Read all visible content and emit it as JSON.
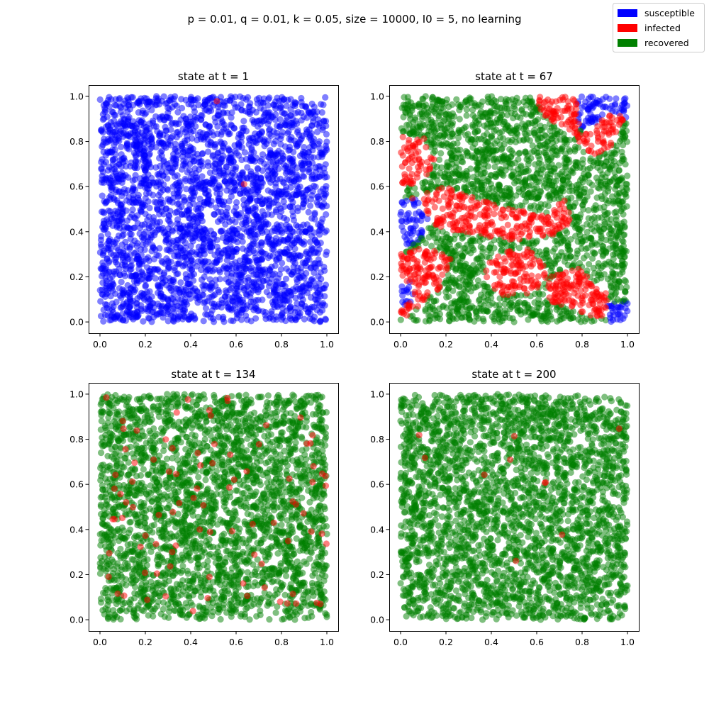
{
  "suptitle": "p = 0.01, q = 0.01, k = 0.05, size = 10000, I0 = 5, no learning",
  "legend": {
    "placement": "top-right",
    "entries": [
      {
        "label": "susceptible",
        "color": "#0000ff"
      },
      {
        "label": "infected",
        "color": "#ff0000"
      },
      {
        "label": "recovered",
        "color": "#008000"
      }
    ]
  },
  "chart_data": [
    {
      "type": "scatter",
      "title": "state at t = 1",
      "xlim": [
        -0.05,
        1.05
      ],
      "ylim": [
        -0.05,
        1.05
      ],
      "xticks": [
        "0.0",
        "0.2",
        "0.4",
        "0.6",
        "0.8",
        "1.0"
      ],
      "yticks": [
        "0.0",
        "0.2",
        "0.4",
        "0.6",
        "0.8",
        "1.0"
      ],
      "grid": false,
      "population": 10000,
      "composition": {
        "susceptible": 0.999,
        "infected": 0.001,
        "recovered": 0.0
      },
      "regions": [],
      "point_alpha": 0.5
    },
    {
      "type": "scatter",
      "title": "state at t = 67",
      "xlim": [
        -0.05,
        1.05
      ],
      "ylim": [
        -0.05,
        1.05
      ],
      "xticks": [
        "0.0",
        "0.2",
        "0.4",
        "0.6",
        "0.8",
        "1.0"
      ],
      "yticks": [
        "0.0",
        "0.2",
        "0.4",
        "0.6",
        "0.8",
        "1.0"
      ],
      "grid": false,
      "population": 10000,
      "composition": {
        "susceptible": 0.05,
        "infected": 0.33,
        "recovered": 0.62
      },
      "regions": [
        {
          "state": "susceptible",
          "polygon": [
            [
              0.78,
              1.0
            ],
            [
              1.0,
              1.0
            ],
            [
              1.0,
              0.9
            ],
            [
              0.92,
              0.93
            ],
            [
              0.86,
              0.88
            ],
            [
              0.8,
              0.83
            ],
            [
              0.78,
              0.9
            ]
          ]
        },
        {
          "state": "susceptible",
          "polygon": [
            [
              0.0,
              0.53
            ],
            [
              0.06,
              0.55
            ],
            [
              0.11,
              0.5
            ],
            [
              0.14,
              0.44
            ],
            [
              0.1,
              0.38
            ],
            [
              0.03,
              0.33
            ],
            [
              0.0,
              0.34
            ]
          ]
        },
        {
          "state": "susceptible",
          "polygon": [
            [
              0.0,
              0.18
            ],
            [
              0.05,
              0.18
            ],
            [
              0.06,
              0.09
            ],
            [
              0.0,
              0.07
            ]
          ]
        },
        {
          "state": "susceptible",
          "polygon": [
            [
              0.91,
              0.09
            ],
            [
              1.0,
              0.09
            ],
            [
              1.0,
              0.0
            ],
            [
              0.91,
              0.0
            ]
          ]
        },
        {
          "state": "infected",
          "polygon": [
            [
              0.6,
              1.0
            ],
            [
              0.8,
              1.0
            ],
            [
              0.78,
              0.82
            ],
            [
              0.7,
              0.86
            ],
            [
              0.62,
              0.93
            ]
          ]
        },
        {
          "state": "infected",
          "polygon": [
            [
              0.78,
              0.82
            ],
            [
              0.86,
              0.88
            ],
            [
              0.93,
              0.94
            ],
            [
              0.99,
              0.9
            ],
            [
              0.96,
              0.8
            ],
            [
              0.86,
              0.74
            ],
            [
              0.8,
              0.76
            ]
          ]
        },
        {
          "state": "infected",
          "polygon": [
            [
              0.0,
              0.83
            ],
            [
              0.1,
              0.82
            ],
            [
              0.16,
              0.72
            ],
            [
              0.1,
              0.62
            ],
            [
              0.03,
              0.6
            ],
            [
              0.0,
              0.62
            ]
          ]
        },
        {
          "state": "infected",
          "polygon": [
            [
              0.05,
              0.55
            ],
            [
              0.2,
              0.6
            ],
            [
              0.35,
              0.54
            ],
            [
              0.5,
              0.5
            ],
            [
              0.64,
              0.48
            ],
            [
              0.72,
              0.56
            ],
            [
              0.76,
              0.45
            ],
            [
              0.66,
              0.38
            ],
            [
              0.52,
              0.36
            ],
            [
              0.38,
              0.38
            ],
            [
              0.24,
              0.4
            ],
            [
              0.12,
              0.44
            ]
          ]
        },
        {
          "state": "infected",
          "polygon": [
            [
              0.0,
              0.3
            ],
            [
              0.12,
              0.34
            ],
            [
              0.22,
              0.28
            ],
            [
              0.18,
              0.16
            ],
            [
              0.1,
              0.08
            ],
            [
              0.02,
              0.02
            ],
            [
              0.0,
              0.04
            ]
          ]
        },
        {
          "state": "infected",
          "polygon": [
            [
              0.66,
              0.2
            ],
            [
              0.78,
              0.24
            ],
            [
              0.9,
              0.14
            ],
            [
              0.94,
              0.04
            ],
            [
              0.86,
              0.02
            ],
            [
              0.74,
              0.06
            ],
            [
              0.64,
              0.1
            ]
          ]
        },
        {
          "state": "infected",
          "polygon": [
            [
              0.4,
              0.3
            ],
            [
              0.56,
              0.33
            ],
            [
              0.66,
              0.22
            ],
            [
              0.58,
              0.12
            ],
            [
              0.44,
              0.12
            ],
            [
              0.36,
              0.2
            ]
          ]
        }
      ],
      "point_alpha": 0.5
    },
    {
      "type": "scatter",
      "title": "state at t = 134",
      "xlim": [
        -0.05,
        1.05
      ],
      "ylim": [
        -0.05,
        1.05
      ],
      "xticks": [
        "0.0",
        "0.2",
        "0.4",
        "0.6",
        "0.8",
        "1.0"
      ],
      "yticks": [
        "0.0",
        "0.2",
        "0.4",
        "0.6",
        "0.8",
        "1.0"
      ],
      "grid": false,
      "population": 10000,
      "composition": {
        "susceptible": 0.0,
        "infected": 0.03,
        "recovered": 0.97
      },
      "regions": [],
      "point_alpha": 0.5
    },
    {
      "type": "scatter",
      "title": "state at t = 200",
      "xlim": [
        -0.05,
        1.05
      ],
      "ylim": [
        -0.05,
        1.05
      ],
      "xticks": [
        "0.0",
        "0.2",
        "0.4",
        "0.6",
        "0.8",
        "1.0"
      ],
      "yticks": [
        "0.0",
        "0.2",
        "0.4",
        "0.6",
        "0.8",
        "1.0"
      ],
      "grid": false,
      "population": 10000,
      "composition": {
        "susceptible": 0.0,
        "infected": 0.003,
        "recovered": 0.997
      },
      "regions": [],
      "point_alpha": 0.5
    }
  ]
}
